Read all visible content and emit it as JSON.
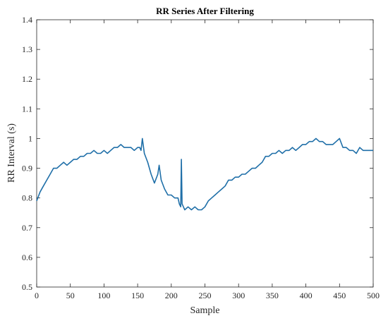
{
  "chart_data": {
    "type": "line",
    "title": "RR Series After Filtering",
    "xlabel": "Sample",
    "ylabel": "RR Interval (s)",
    "xlim": [
      0,
      500
    ],
    "ylim": [
      0.5,
      1.4
    ],
    "xticks": [
      "0",
      "50",
      "100",
      "150",
      "200",
      "250",
      "300",
      "350",
      "400",
      "450",
      "500"
    ],
    "yticks": [
      "0.5",
      "0.6",
      "0.7",
      "0.8",
      "0.9",
      "1",
      "1.1",
      "1.2",
      "1.3",
      "1.4"
    ],
    "grid": false,
    "line_color": "#1f6fa8",
    "series": [
      {
        "x": [
          0,
          5,
          10,
          15,
          20,
          25,
          30,
          35,
          40,
          45,
          50,
          55,
          60,
          65,
          70,
          75,
          80,
          85,
          90,
          95,
          100,
          105,
          110,
          115,
          120,
          125,
          130,
          135,
          140,
          145,
          150,
          153,
          155,
          157,
          160,
          165,
          170,
          175,
          180,
          182,
          185,
          190,
          195,
          200,
          205,
          210,
          212,
          214,
          215,
          216,
          218,
          220,
          225,
          230,
          235,
          240,
          245,
          250,
          255,
          260,
          265,
          270,
          275,
          280,
          285,
          290,
          295,
          300,
          305,
          310,
          315,
          320,
          325,
          330,
          335,
          340,
          345,
          350,
          355,
          360,
          365,
          370,
          375,
          380,
          385,
          390,
          395,
          400,
          405,
          410,
          415,
          420,
          425,
          430,
          435,
          440,
          445,
          450,
          455,
          460,
          465,
          470,
          475,
          480,
          485,
          490,
          495,
          500
        ],
        "y": [
          0.79,
          0.82,
          0.84,
          0.86,
          0.88,
          0.9,
          0.9,
          0.91,
          0.92,
          0.91,
          0.92,
          0.93,
          0.93,
          0.94,
          0.94,
          0.95,
          0.95,
          0.96,
          0.95,
          0.95,
          0.96,
          0.95,
          0.96,
          0.97,
          0.97,
          0.98,
          0.97,
          0.97,
          0.97,
          0.96,
          0.97,
          0.97,
          0.96,
          1.0,
          0.95,
          0.92,
          0.88,
          0.85,
          0.88,
          0.91,
          0.86,
          0.83,
          0.81,
          0.81,
          0.8,
          0.8,
          0.78,
          0.77,
          0.93,
          0.78,
          0.77,
          0.76,
          0.77,
          0.76,
          0.77,
          0.76,
          0.76,
          0.77,
          0.79,
          0.8,
          0.81,
          0.82,
          0.83,
          0.84,
          0.86,
          0.86,
          0.87,
          0.87,
          0.88,
          0.88,
          0.89,
          0.9,
          0.9,
          0.91,
          0.92,
          0.94,
          0.94,
          0.95,
          0.95,
          0.96,
          0.95,
          0.96,
          0.96,
          0.97,
          0.96,
          0.97,
          0.98,
          0.98,
          0.99,
          0.99,
          1.0,
          0.99,
          0.99,
          0.98,
          0.98,
          0.98,
          0.99,
          1.0,
          0.97,
          0.97,
          0.96,
          0.96,
          0.95,
          0.97,
          0.96,
          0.96,
          0.96,
          0.96
        ]
      }
    ]
  }
}
